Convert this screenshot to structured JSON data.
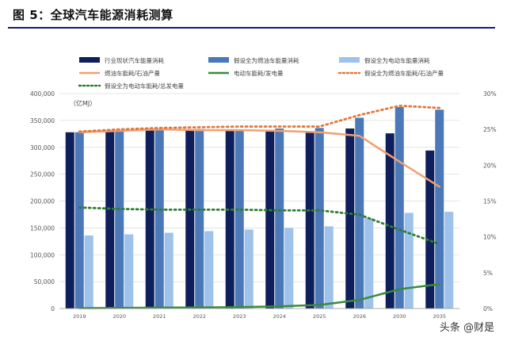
{
  "title": "图 5：全球汽车能源消耗测算",
  "watermark": "头条 @财是",
  "chart_data": {
    "type": "bar",
    "unit_label": "（亿MJ）",
    "categories": [
      "2019",
      "2020",
      "2021",
      "2022",
      "2023",
      "2024",
      "2025",
      "2026",
      "2030",
      "2035"
    ],
    "ylim": [
      0,
      400000
    ],
    "yticks": [
      "0",
      "50,000",
      "100,000",
      "150,000",
      "200,000",
      "250,000",
      "300,000",
      "350,000",
      "400,000"
    ],
    "y2lim": [
      0,
      0.3
    ],
    "y2ticks": [
      "0%",
      "5%",
      "10%",
      "15%",
      "20%",
      "25%",
      "30%"
    ],
    "legend": [
      {
        "name": "行业现状汽车能量消耗",
        "kind": "bar",
        "color": "#0f1f5c"
      },
      {
        "name": "假设全为燃油车能量消耗",
        "kind": "bar",
        "color": "#4a78b8"
      },
      {
        "name": "假设全为电动车能量消耗",
        "kind": "bar",
        "color": "#9ec2ea"
      },
      {
        "name": "燃油车能耗/石油产量",
        "kind": "line",
        "color": "#f0a071"
      },
      {
        "name": "电动车能耗/发电量",
        "kind": "line",
        "color": "#3a8a3a"
      },
      {
        "name": "假设全为燃油车能耗/石油产量",
        "kind": "dotted",
        "color": "#e3783a"
      },
      {
        "name": "假设全为电动车能耗/总发电量",
        "kind": "dotted",
        "color": "#2e7d32"
      }
    ],
    "bar_series": [
      {
        "name": "行业现状汽车能量消耗",
        "color": "#0f1f5c",
        "values": [
          328000,
          330000,
          332000,
          332000,
          331000,
          330000,
          328000,
          335000,
          326000,
          294000
        ]
      },
      {
        "name": "假设全为燃油车能量消耗",
        "color": "#4a78b8",
        "values": [
          328000,
          332000,
          334000,
          334000,
          333000,
          335000,
          336000,
          355000,
          375000,
          370000
        ]
      },
      {
        "name": "假设全为电动车能量消耗",
        "color": "#9ec2ea",
        "values": [
          136000,
          138000,
          141000,
          144000,
          147000,
          150000,
          153000,
          168000,
          178000,
          180000
        ]
      }
    ],
    "line_series": [
      {
        "name": "燃油车能耗/石油产量",
        "color": "#f0a071",
        "style": "solid",
        "values": [
          0.246,
          0.248,
          0.25,
          0.249,
          0.249,
          0.248,
          0.246,
          0.241,
          0.205,
          0.17
        ]
      },
      {
        "name": "电动车能耗/发电量",
        "color": "#3a8a3a",
        "style": "solid",
        "values": [
          0.0005,
          0.0008,
          0.0012,
          0.0015,
          0.002,
          0.003,
          0.005,
          0.012,
          0.027,
          0.034
        ]
      },
      {
        "name": "假设全为燃油车能耗/石油产量",
        "color": "#e3783a",
        "style": "dotted",
        "values": [
          0.247,
          0.25,
          0.252,
          0.253,
          0.254,
          0.254,
          0.254,
          0.27,
          0.283,
          0.28
        ]
      },
      {
        "name": "假设全为电动车能耗/总发电量",
        "color": "#2e7d32",
        "style": "dotted",
        "values": [
          0.141,
          0.139,
          0.138,
          0.138,
          0.138,
          0.137,
          0.137,
          0.131,
          0.11,
          0.09
        ]
      }
    ]
  }
}
